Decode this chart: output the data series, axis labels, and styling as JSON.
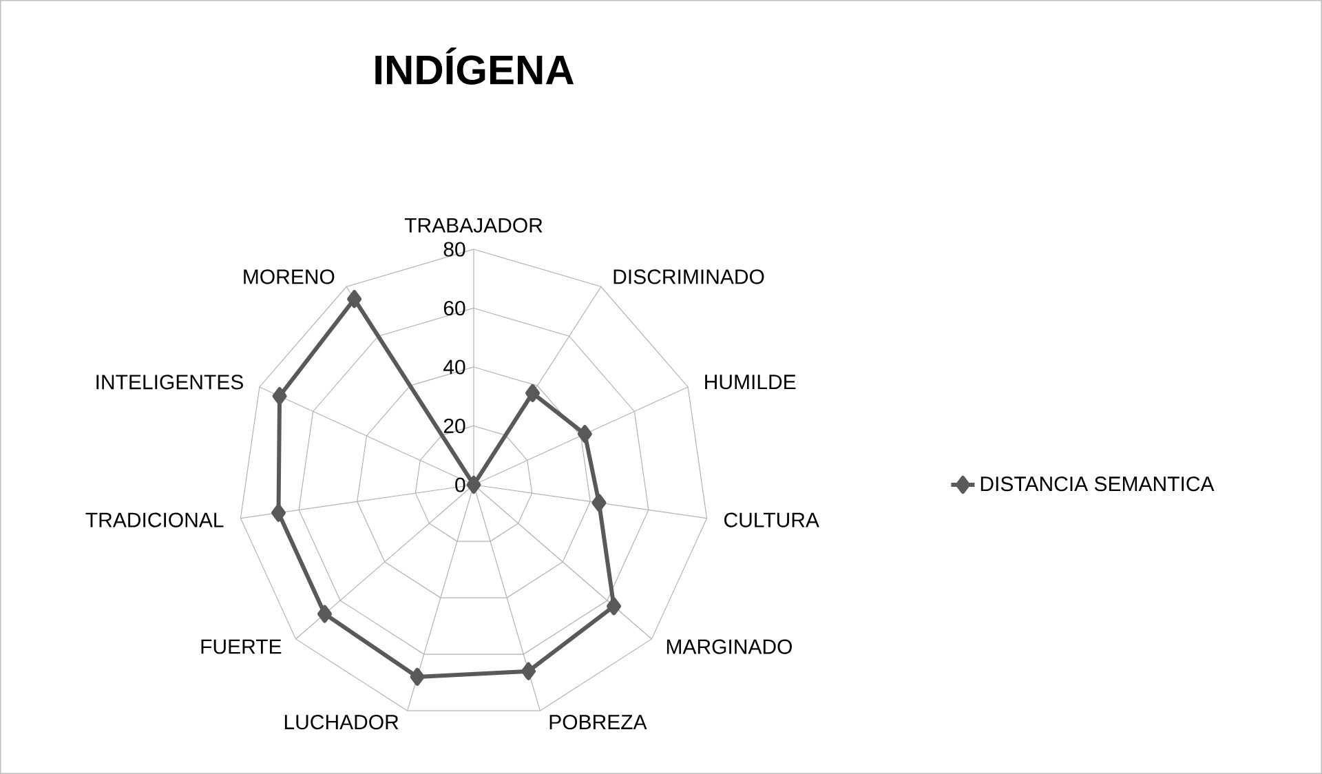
{
  "chart_data": {
    "type": "radar",
    "title": "INDÍGENA",
    "categories": [
      "TRABAJADOR",
      "DISCRIMINADO",
      "HUMILDE",
      "CULTURA",
      "MARGINADO",
      "POBREZA",
      "LUCHADOR",
      "FUERTE",
      "TRADICIONAL",
      "INTELIGENTES",
      "MORENO"
    ],
    "series": [
      {
        "name": "DISTANCIA SEMANTICA",
        "color": "#595959",
        "values": [
          0,
          37,
          41.5,
          43,
          63,
          66,
          68,
          67,
          67,
          72.5,
          75
        ]
      }
    ],
    "ylim": [
      0,
      80
    ],
    "yticks": [
      0,
      20,
      40,
      60,
      80
    ],
    "grid": true,
    "legend": "right",
    "marker": "diamond"
  }
}
